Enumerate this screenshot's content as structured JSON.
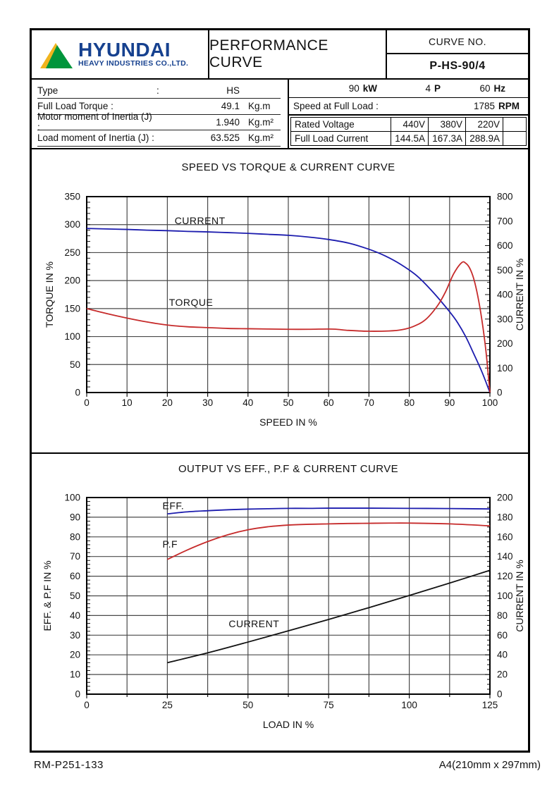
{
  "header": {
    "logo_brand": "HYUNDAI",
    "logo_subtitle": "HEAVY INDUSTRIES CO.,LTD.",
    "title": "PERFORMANCE CURVE",
    "curve_no_label": "CURVE NO.",
    "curve_no_value": "P-HS-90/4"
  },
  "specs": {
    "left_rows": [
      {
        "label": "Type",
        "colon": ":",
        "value": "HS",
        "unit": ""
      },
      {
        "label": "Full Load Torque :",
        "value": "49.1",
        "unit": "Kg.m"
      },
      {
        "label": "Motor moment of Inertia (J) :",
        "value": "1.940",
        "unit": "Kg.m²"
      },
      {
        "label": "Load moment of Inertia (J) :",
        "value": "63.525",
        "unit": "Kg.m²"
      }
    ],
    "rating": {
      "power": "90",
      "power_unit": "kW",
      "poles": "4",
      "poles_unit": "P",
      "freq": "60",
      "freq_unit": "Hz"
    },
    "speed_label": "Speed at Full Load :",
    "speed_value": "1785",
    "speed_unit": "RPM",
    "voltage_row": {
      "label": "Rated Voltage",
      "values": [
        "440V",
        "380V",
        "220V"
      ]
    },
    "current_row": {
      "label": "Full Load Current",
      "values": [
        "144.5A",
        "167.3A",
        "288.9A"
      ]
    }
  },
  "footer": {
    "left": "RM-P251-133",
    "right": "A4(210mm x 297mm)"
  },
  "colors": {
    "blue": "#1c1cae",
    "red": "#c62b2b",
    "black": "#111111",
    "grid": "#4a4a4a",
    "logo_blue": "#16418f",
    "logo_green": "#00953b",
    "logo_yellow": "#f0b41e"
  },
  "chart_data": [
    {
      "type": "line",
      "title": "SPEED VS TORQUE & CURRENT CURVE",
      "xlabel": "SPEED IN %",
      "ylabel_left": "TORQUE IN %",
      "ylabel_right": "CURRENT IN %",
      "xlim": [
        0,
        100
      ],
      "x_major": 10,
      "x_grid": 10,
      "x_minor": 10,
      "ylim_left": [
        0,
        350
      ],
      "y_major_left": 50,
      "y_minor_left": 10,
      "ylim_right": [
        0,
        800
      ],
      "y_major_right": 100,
      "y_minor_right": 25,
      "grid": true,
      "series": [
        {
          "name": "CURRENT",
          "color_key": "blue",
          "axis": "right",
          "x": [
            0,
            5,
            10,
            15,
            20,
            25,
            30,
            35,
            40,
            45,
            50,
            55,
            60,
            65,
            70,
            74,
            78,
            82,
            86,
            90,
            92,
            94,
            96,
            98,
            100
          ],
          "y": [
            670,
            668,
            666,
            663,
            661,
            658,
            656,
            653,
            650,
            646,
            642,
            635,
            625,
            610,
            585,
            558,
            522,
            475,
            408,
            330,
            285,
            228,
            158,
            85,
            0
          ]
        },
        {
          "name": "TORQUE",
          "color_key": "red",
          "axis": "left",
          "x": [
            0,
            5,
            10,
            15,
            20,
            25,
            30,
            35,
            40,
            45,
            50,
            55,
            60,
            62,
            65,
            70,
            75,
            78,
            81,
            84,
            87,
            89,
            91,
            93,
            94,
            95,
            96,
            97,
            98,
            99,
            100
          ],
          "y": [
            150,
            141,
            133,
            126,
            120.5,
            117.5,
            116,
            114.5,
            114,
            113.5,
            113,
            113,
            113.5,
            113,
            111,
            109.5,
            110,
            112,
            118,
            130,
            155,
            180,
            212,
            232,
            231,
            222,
            203,
            172,
            130,
            75,
            0
          ]
        }
      ],
      "annotations": [
        {
          "text": "CURRENT",
          "x": 21.8,
          "y": 301
        },
        {
          "text": "TORQUE",
          "x": 20.4,
          "y": 155
        }
      ]
    },
    {
      "type": "line",
      "title": "OUTPUT VS EFF., P.F & CURRENT CURVE",
      "xlabel": "LOAD IN %",
      "ylabel_left": "EFF. & P.F IN %",
      "ylabel_right": "CURRENT IN %",
      "xlim": [
        0,
        125
      ],
      "x_major": 25,
      "x_grid": 12.5,
      "x_minor": 12.5,
      "ylim_left": [
        0,
        100
      ],
      "y_major_left": 10,
      "y_minor_left": 2,
      "ylim_right": [
        0,
        200
      ],
      "y_major_right": 20,
      "y_minor_right": 5,
      "grid": true,
      "series": [
        {
          "name": "EFF.",
          "color_key": "blue",
          "axis": "left",
          "x": [
            25,
            31,
            37.5,
            44,
            50,
            56,
            62.5,
            69,
            75,
            87.5,
            100,
            112.5,
            125
          ],
          "y": [
            91.7,
            92.7,
            93.3,
            93.8,
            94.1,
            94.3,
            94.5,
            94.5,
            94.6,
            94.6,
            94.5,
            94.4,
            94.2
          ]
        },
        {
          "name": "P.F",
          "color_key": "red",
          "axis": "left",
          "x": [
            25,
            31,
            37.5,
            44,
            50,
            56,
            62.5,
            69,
            75,
            81,
            87.5,
            94,
            100,
            112.5,
            125
          ],
          "y": [
            68.5,
            73.2,
            77.6,
            81.2,
            83.6,
            85.1,
            86.0,
            86.4,
            86.6,
            86.8,
            86.9,
            87.0,
            87.0,
            86.6,
            85.6
          ]
        },
        {
          "name": "CURRENT",
          "color_key": "black",
          "axis": "left",
          "x": [
            25,
            37.5,
            50,
            62.5,
            75,
            87.5,
            100,
            112.5,
            125
          ],
          "y": [
            16,
            21,
            26.5,
            32.2,
            38,
            44,
            50.2,
            56.5,
            63
          ]
        }
      ],
      "annotations": [
        {
          "text": "EFF.",
          "x": 23.5,
          "y": 94
        },
        {
          "text": "P.F",
          "x": 23.5,
          "y": 74.5
        },
        {
          "text": "CURRENT",
          "x": 44,
          "y": 34
        }
      ]
    }
  ]
}
